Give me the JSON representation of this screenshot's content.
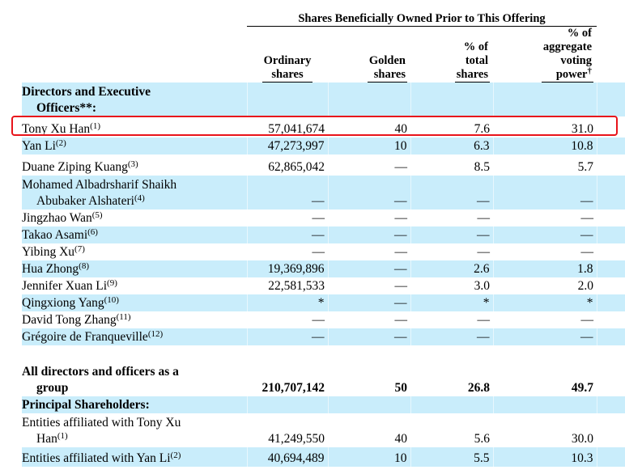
{
  "header": {
    "group_title": "Shares Beneficially Owned Prior to This Offering",
    "columns": [
      {
        "lines": [
          "Ordinary",
          "shares"
        ]
      },
      {
        "lines": [
          "Golden",
          "shares"
        ]
      },
      {
        "lines": [
          "% of",
          "total",
          "shares"
        ]
      },
      {
        "lines": [
          "% of",
          "aggregate",
          "voting",
          "power"
        ],
        "mark": "†"
      }
    ]
  },
  "sections": {
    "directors": {
      "line1": "Directors and Executive",
      "line2": "Officers**:"
    },
    "principal": "Principal Shareholders:"
  },
  "rows": [
    {
      "name": "Tony Xu Han",
      "note": "(1)",
      "ordinary": "57,041,674",
      "golden": "40",
      "total": "7.6",
      "voting": "31.0"
    },
    {
      "name": "Yan Li",
      "note": "(2)",
      "ordinary": "47,273,997",
      "golden": "10",
      "total": "6.3",
      "voting": "10.8"
    },
    {
      "name": "Duane Ziping Kuang",
      "note": "(3)",
      "ordinary": "62,865,042",
      "golden": "—",
      "total": "8.5",
      "voting": "5.7"
    },
    {
      "name": "Mohamed Albadrsharif Shaikh",
      "name2": "Abubaker Alshateri",
      "note": "(4)",
      "ordinary": "—",
      "golden": "—",
      "total": "—",
      "voting": "—"
    },
    {
      "name": "Jingzhao Wan",
      "note": "(5)",
      "ordinary": "—",
      "golden": "—",
      "total": "—",
      "voting": "—"
    },
    {
      "name": "Takao Asami",
      "note": "(6)",
      "ordinary": "—",
      "golden": "—",
      "total": "—",
      "voting": "—"
    },
    {
      "name": "Yibing Xu",
      "note": "(7)",
      "ordinary": "—",
      "golden": "—",
      "total": "—",
      "voting": "—"
    },
    {
      "name": "Hua Zhong",
      "note": "(8)",
      "ordinary": "19,369,896",
      "golden": "—",
      "total": "2.6",
      "voting": "1.8"
    },
    {
      "name": "Jennifer Xuan Li",
      "note": "(9)",
      "ordinary": "22,581,533",
      "golden": "—",
      "total": "3.0",
      "voting": "2.0"
    },
    {
      "name": "Qingxiong Yang",
      "note": "(10)",
      "ordinary": "*",
      "golden": "—",
      "total": "*",
      "voting": "*"
    },
    {
      "name": "David Tong Zhang",
      "note": "(11)",
      "ordinary": "—",
      "golden": "—",
      "total": "—",
      "voting": "—"
    },
    {
      "name": "Grégoire de Franqueville",
      "note": "(12)",
      "ordinary": "—",
      "golden": "—",
      "total": "—",
      "voting": "—"
    }
  ],
  "group_total": {
    "line1": "All directors and officers as a",
    "line2": "group",
    "ordinary": "210,707,142",
    "golden": "50",
    "total": "26.8",
    "voting": "49.7"
  },
  "principal_rows": [
    {
      "name": "Entities affiliated with Tony Xu",
      "name2": "Han",
      "note": "(1)",
      "ordinary": "41,249,550",
      "golden": "40",
      "total": "5.6",
      "voting": "30.0"
    },
    {
      "name": "Entities affiliated with Yan Li",
      "note": "(2)",
      "ordinary": "40,694,489",
      "golden": "10",
      "total": "5.5",
      "voting": "10.3"
    }
  ],
  "highlight_color": "#e8141b",
  "stripe_color": "#c9edfb"
}
